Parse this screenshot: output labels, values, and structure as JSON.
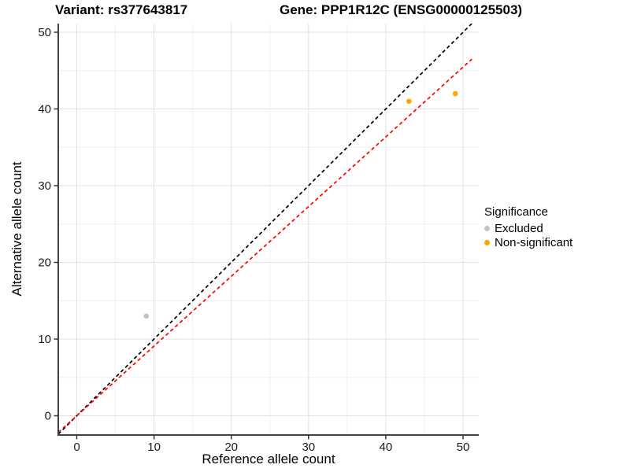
{
  "header": {
    "variant_title": "Variant: rs377643817",
    "gene_title": "Gene: PPP1R12C (ENSG00000125503)"
  },
  "chart_data": {
    "type": "scatter",
    "title": "Variant: rs377643817 | Gene: PPP1R12C (ENSG00000125503)",
    "xlabel": "Reference allele count",
    "ylabel": "Alternative allele count",
    "xlim": [
      -2.4,
      52.4
    ],
    "ylim": [
      -2.5,
      51.1
    ],
    "x_ticks": [
      0,
      10,
      20,
      30,
      40,
      50
    ],
    "y_ticks": [
      0,
      10,
      20,
      30,
      40,
      50
    ],
    "grid": {
      "major": true,
      "minor": true,
      "major_color": "#e2e2e2",
      "minor_color": "#f0f0f0"
    },
    "axis_color": "#404040",
    "series": [
      {
        "name": "Excluded",
        "color": "#c2c2c2",
        "points": [
          {
            "x": 9,
            "y": 13
          }
        ]
      },
      {
        "name": "Non-significant",
        "color": "#ffa500",
        "points": [
          {
            "x": 43,
            "y": 41
          },
          {
            "x": 49,
            "y": 42
          }
        ]
      }
    ],
    "lines": [
      {
        "name": "identity-line",
        "color": "#000000",
        "style": "dashed",
        "slope": 1,
        "intercept": 0
      },
      {
        "name": "fit-line",
        "color": "#ff0000",
        "style": "dashed",
        "slope": 0.909,
        "intercept": 0
      }
    ],
    "legend": {
      "title": "Significance",
      "position": "right",
      "entries": [
        "Excluded",
        "Non-significant"
      ]
    }
  }
}
